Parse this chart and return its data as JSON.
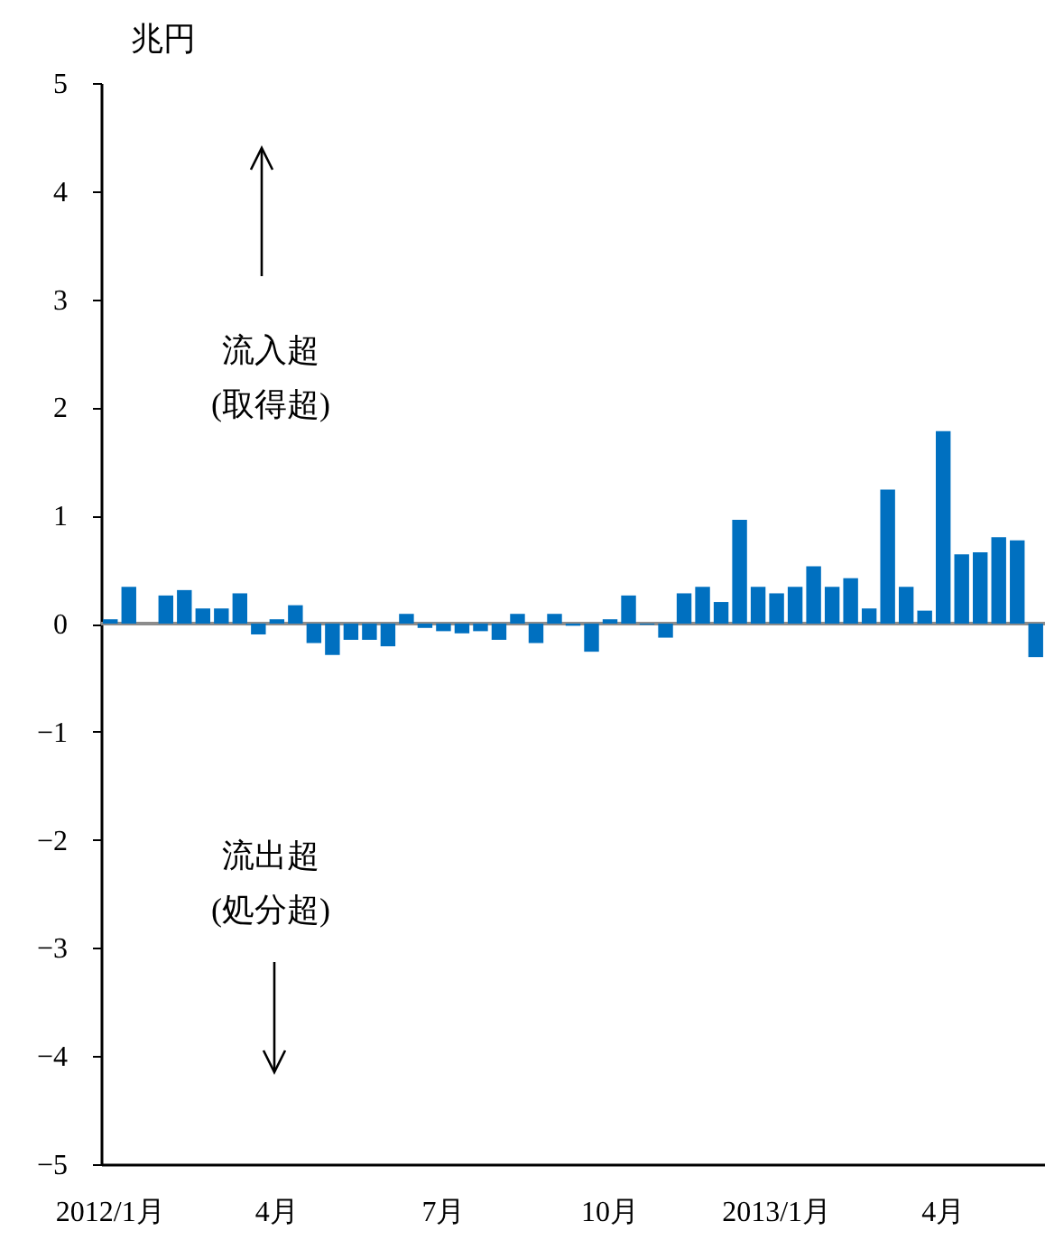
{
  "chart_data": {
    "type": "bar",
    "ylabel": "兆円",
    "categories": [
      "2012/1月",
      null,
      null,
      null,
      null,
      null,
      null,
      null,
      null,
      "4月",
      null,
      null,
      null,
      null,
      null,
      null,
      null,
      null,
      "7月",
      null,
      null,
      null,
      null,
      null,
      null,
      null,
      null,
      "10月",
      null,
      null,
      null,
      null,
      null,
      null,
      null,
      null,
      "2013/1月",
      null,
      null,
      null,
      null,
      null,
      null,
      null,
      null,
      "4月",
      null,
      null,
      null,
      null,
      null
    ],
    "values": [
      0.04,
      0.34,
      0,
      0.26,
      0.31,
      0.14,
      0.14,
      0.28,
      -0.1,
      0.04,
      0.17,
      -0.18,
      -0.29,
      -0.15,
      -0.15,
      -0.21,
      0.09,
      -0.04,
      -0.07,
      -0.09,
      -0.07,
      -0.15,
      0.09,
      -0.18,
      0.09,
      -0.02,
      -0.26,
      0.04,
      0.26,
      -0.01,
      -0.13,
      0.28,
      0.34,
      0.2,
      0.96,
      0.34,
      0.28,
      0.34,
      0.53,
      0.34,
      0.42,
      0.14,
      1.24,
      0.34,
      0.12,
      1.78,
      0.64,
      0.66,
      0.8,
      0.77,
      -0.31
    ],
    "color": "#0070c0",
    "ylim": [
      -5,
      5
    ],
    "yticks": [
      -5,
      -4,
      -3,
      -2,
      -1,
      0,
      1,
      2,
      3,
      4,
      5
    ],
    "ref_lines": [
      {
        "axis": "y",
        "value": 0,
        "color": "#8c8c8c"
      }
    ],
    "annotations": [
      "流入超",
      "(取得超)",
      "流出超",
      "(処分超)"
    ],
    "grid": false
  }
}
